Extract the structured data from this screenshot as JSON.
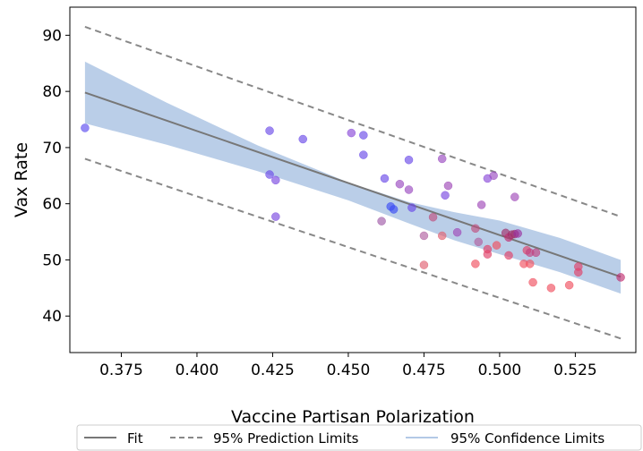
{
  "chart_data": {
    "type": "scatter",
    "xlabel": "Vaccine Partisan Polarization",
    "ylabel": "Vax Rate",
    "xlim": [
      0.358,
      0.545
    ],
    "ylim": [
      33.5,
      95
    ],
    "xticks": [
      0.375,
      0.4,
      0.425,
      0.45,
      0.475,
      0.5,
      0.525
    ],
    "xtick_labels": [
      "0.375",
      "0.400",
      "0.425",
      "0.450",
      "0.475",
      "0.500",
      "0.525"
    ],
    "yticks": [
      40,
      50,
      60,
      70,
      80,
      90
    ],
    "ytick_labels": [
      "40",
      "50",
      "60",
      "70",
      "80",
      "90"
    ],
    "grid": false,
    "legend": {
      "position": "bottom",
      "entries": [
        "Fit",
        "95% Prediction Limits",
        "95% Confidence Limits"
      ]
    },
    "fit": {
      "x": [
        0.363,
        0.54
      ],
      "y": [
        79.8,
        47.0
      ],
      "color": "#777777"
    },
    "prediction_limits": {
      "upper": {
        "x": [
          0.363,
          0.54
        ],
        "y": [
          91.5,
          57.7
        ]
      },
      "lower": {
        "x": [
          0.363,
          0.54
        ],
        "y": [
          68.0,
          36.0
        ]
      },
      "color": "#888888"
    },
    "confidence_band": {
      "x": [
        0.363,
        0.39,
        0.42,
        0.45,
        0.47,
        0.485,
        0.5,
        0.52,
        0.54
      ],
      "upper": [
        85.3,
        78.0,
        70.4,
        63.8,
        60.3,
        58.5,
        57.0,
        53.9,
        50.0
      ],
      "lower": [
        74.3,
        70.5,
        65.8,
        60.6,
        56.5,
        53.5,
        51.0,
        47.8,
        44.0
      ],
      "color": "#b3c9e6"
    },
    "points": [
      {
        "x": 0.363,
        "y": 73.5,
        "color": "#5a4cf0"
      },
      {
        "x": 0.424,
        "y": 73.0,
        "color": "#6a4ae8"
      },
      {
        "x": 0.424,
        "y": 65.2,
        "color": "#6a4ae8"
      },
      {
        "x": 0.426,
        "y": 64.2,
        "color": "#7a48e0"
      },
      {
        "x": 0.426,
        "y": 57.7,
        "color": "#7a48e0"
      },
      {
        "x": 0.435,
        "y": 71.5,
        "color": "#6a4ae8"
      },
      {
        "x": 0.451,
        "y": 72.6,
        "color": "#8a4ad8"
      },
      {
        "x": 0.455,
        "y": 72.2,
        "color": "#6a4ae8"
      },
      {
        "x": 0.455,
        "y": 68.7,
        "color": "#6a4ae8"
      },
      {
        "x": 0.462,
        "y": 64.5,
        "color": "#6a4ae8"
      },
      {
        "x": 0.461,
        "y": 56.9,
        "color": "#a05aa8"
      },
      {
        "x": 0.464,
        "y": 59.5,
        "color": "#3a4cf5"
      },
      {
        "x": 0.465,
        "y": 59.0,
        "color": "#3a4cf5"
      },
      {
        "x": 0.467,
        "y": 63.5,
        "color": "#9a4ac0"
      },
      {
        "x": 0.47,
        "y": 67.8,
        "color": "#6a4ae8"
      },
      {
        "x": 0.47,
        "y": 62.5,
        "color": "#9a4ac0"
      },
      {
        "x": 0.471,
        "y": 59.3,
        "color": "#6a4ae8"
      },
      {
        "x": 0.475,
        "y": 54.3,
        "color": "#b060a0"
      },
      {
        "x": 0.475,
        "y": 49.1,
        "color": "#e06070"
      },
      {
        "x": 0.478,
        "y": 57.6,
        "color": "#c05080"
      },
      {
        "x": 0.481,
        "y": 68.0,
        "color": "#9a4ac0"
      },
      {
        "x": 0.481,
        "y": 54.3,
        "color": "#e06070"
      },
      {
        "x": 0.482,
        "y": 61.5,
        "color": "#7a48e0"
      },
      {
        "x": 0.483,
        "y": 63.2,
        "color": "#a04ab8"
      },
      {
        "x": 0.486,
        "y": 54.9,
        "color": "#a04ab8"
      },
      {
        "x": 0.492,
        "y": 55.6,
        "color": "#c05080"
      },
      {
        "x": 0.492,
        "y": 49.3,
        "color": "#f05060"
      },
      {
        "x": 0.493,
        "y": 53.2,
        "color": "#b060a0"
      },
      {
        "x": 0.494,
        "y": 59.8,
        "color": "#a04ab8"
      },
      {
        "x": 0.496,
        "y": 64.5,
        "color": "#8a4ad8"
      },
      {
        "x": 0.496,
        "y": 51.9,
        "color": "#e04068"
      },
      {
        "x": 0.496,
        "y": 51.0,
        "color": "#e04068"
      },
      {
        "x": 0.498,
        "y": 65.0,
        "color": "#9a4ac0"
      },
      {
        "x": 0.499,
        "y": 52.6,
        "color": "#f05060"
      },
      {
        "x": 0.502,
        "y": 54.8,
        "color": "#a0306a"
      },
      {
        "x": 0.503,
        "y": 54.0,
        "color": "#c03070"
      },
      {
        "x": 0.503,
        "y": 50.8,
        "color": "#e04068"
      },
      {
        "x": 0.504,
        "y": 54.5,
        "color": "#a0306a"
      },
      {
        "x": 0.505,
        "y": 61.2,
        "color": "#a04ab8"
      },
      {
        "x": 0.505,
        "y": 54.6,
        "color": "#a0306a"
      },
      {
        "x": 0.506,
        "y": 54.7,
        "color": "#9a30a0"
      },
      {
        "x": 0.508,
        "y": 49.3,
        "color": "#f05060"
      },
      {
        "x": 0.509,
        "y": 51.7,
        "color": "#e04068"
      },
      {
        "x": 0.51,
        "y": 49.3,
        "color": "#f05060"
      },
      {
        "x": 0.51,
        "y": 51.3,
        "color": "#c04080"
      },
      {
        "x": 0.511,
        "y": 46.0,
        "color": "#f05060"
      },
      {
        "x": 0.512,
        "y": 51.3,
        "color": "#c04080"
      },
      {
        "x": 0.517,
        "y": 45.0,
        "color": "#f05060"
      },
      {
        "x": 0.523,
        "y": 45.5,
        "color": "#f05060"
      },
      {
        "x": 0.526,
        "y": 48.8,
        "color": "#e04068"
      },
      {
        "x": 0.526,
        "y": 47.8,
        "color": "#e04068"
      },
      {
        "x": 0.54,
        "y": 46.9,
        "color": "#c03070"
      }
    ]
  }
}
